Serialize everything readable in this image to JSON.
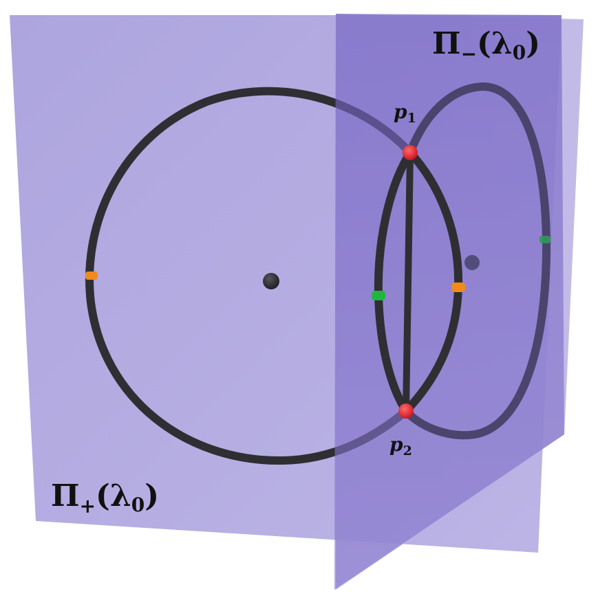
{
  "labels": {
    "plane_plus": {
      "pi": "Π",
      "sub": "+",
      "open": "(",
      "lambda": "λ",
      "lambda_sub": "0",
      "close": ")"
    },
    "plane_minus": {
      "pi": "Π",
      "sub": "−",
      "open": "(",
      "lambda": "λ",
      "lambda_sub": "0",
      "close": ")"
    },
    "point_1": {
      "p": "p",
      "sub": "1"
    },
    "point_2": {
      "p": "p",
      "sub": "2"
    }
  },
  "colors": {
    "plane_plus_fill": "#9c92d4",
    "plane_minus_fill": "#7a68c4",
    "plane_minus_back": "#b3a8e0",
    "curve": "#2f2f33",
    "curve_behind": "#4a4666",
    "intersection_point": "#e0202a",
    "orange_marker": "#f08a1e",
    "green_marker": "#22b540",
    "center": "#2a2a2e"
  }
}
